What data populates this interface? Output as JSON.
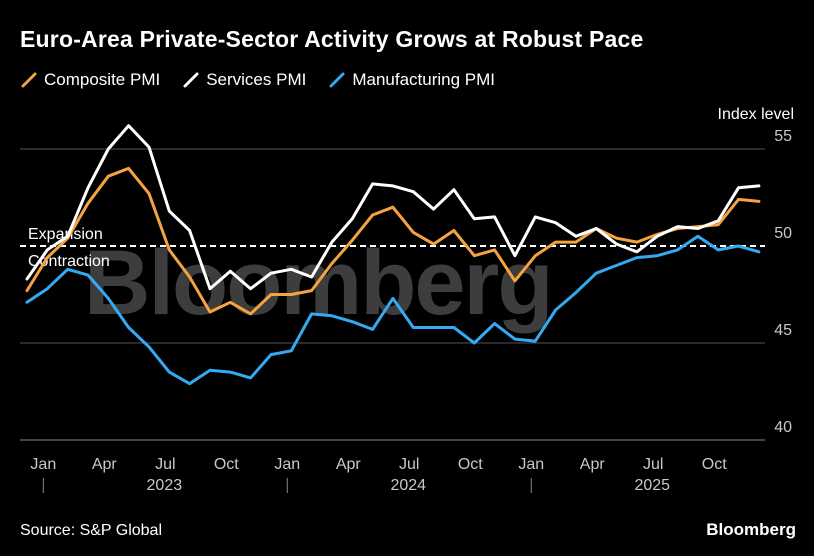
{
  "header": {
    "title": "Euro-Area Private-Sector Activity Grows at Robust Pace"
  },
  "footer": {
    "source": "Source: S&P Global",
    "brand": "Bloomberg"
  },
  "watermark": "Bloomberg",
  "colors": {
    "composite": "#f5a340",
    "services": "#ffffff",
    "manufacturing": "#34aaf2",
    "grid": "#555555",
    "axis": "#888888",
    "watermark": "#3d3d3d"
  },
  "chart_data": {
    "type": "line",
    "title": "Euro-Area Private-Sector Activity Grows at Robust Pace",
    "ylabel": "Index level",
    "xlabel": "",
    "ylim": [
      40,
      57
    ],
    "yticks": [
      40,
      45,
      50,
      55
    ],
    "grid": true,
    "legend_position": "top-left",
    "reference_line": {
      "value": 50,
      "upper_label": "Expansion",
      "lower_label": "Contraction"
    },
    "x_ticks": [
      {
        "index": 1,
        "label": "Jan"
      },
      {
        "index": 4,
        "label": "Apr"
      },
      {
        "index": 7,
        "label": "Jul"
      },
      {
        "index": 10,
        "label": "Oct"
      },
      {
        "index": 13,
        "label": "Jan"
      },
      {
        "index": 16,
        "label": "Apr"
      },
      {
        "index": 19,
        "label": "Jul"
      },
      {
        "index": 22,
        "label": "Oct"
      },
      {
        "index": 25,
        "label": "Jan"
      },
      {
        "index": 28,
        "label": "Apr"
      },
      {
        "index": 31,
        "label": "Jul"
      },
      {
        "index": 34,
        "label": "Oct"
      }
    ],
    "years": [
      {
        "index": 1,
        "label": "2023"
      },
      {
        "index": 13,
        "label": "2024"
      },
      {
        "index": 25,
        "label": "2025"
      }
    ],
    "x": [
      "2022-12",
      "2023-01",
      "2023-02",
      "2023-03",
      "2023-04",
      "2023-05",
      "2023-06",
      "2023-07",
      "2023-08",
      "2023-09",
      "2023-10",
      "2023-11",
      "2023-12",
      "2024-01",
      "2024-02",
      "2024-03",
      "2024-04",
      "2024-05",
      "2024-06",
      "2024-07",
      "2024-08",
      "2024-09",
      "2024-10",
      "2024-11",
      "2024-12",
      "2025-01",
      "2025-02",
      "2025-03",
      "2025-04",
      "2025-05",
      "2025-06",
      "2025-07",
      "2025-08",
      "2025-09",
      "2025-10",
      "2025-11",
      "2025-12"
    ],
    "series": [
      {
        "name": "Composite PMI",
        "key": "composite",
        "values": [
          47.7,
          49.4,
          50.4,
          52.2,
          53.6,
          54.0,
          52.7,
          49.8,
          48.4,
          46.6,
          47.1,
          46.5,
          47.5,
          47.5,
          47.7,
          49.1,
          50.3,
          51.6,
          52.0,
          50.7,
          50.1,
          50.8,
          49.5,
          49.8,
          48.2,
          49.5,
          50.2,
          50.2,
          50.9,
          50.4,
          50.2,
          50.6,
          50.9,
          51.0,
          51.1,
          52.4,
          52.3
        ]
      },
      {
        "name": "Services PMI",
        "key": "services",
        "values": [
          48.3,
          49.8,
          50.5,
          53.0,
          55.0,
          56.2,
          55.1,
          51.8,
          50.8,
          47.8,
          48.7,
          47.8,
          48.6,
          48.8,
          48.4,
          50.2,
          51.4,
          53.2,
          53.1,
          52.8,
          51.9,
          52.9,
          51.4,
          51.5,
          49.5,
          51.5,
          51.2,
          50.5,
          50.9,
          50.1,
          49.7,
          50.5,
          51.0,
          50.9,
          51.3,
          53.0,
          53.1
        ]
      },
      {
        "name": "Manufacturing PMI",
        "key": "manufacturing",
        "values": [
          47.1,
          47.8,
          48.8,
          48.5,
          47.3,
          45.8,
          44.8,
          43.5,
          42.9,
          43.6,
          43.5,
          43.2,
          44.4,
          44.6,
          46.5,
          46.4,
          46.1,
          45.7,
          47.3,
          45.8,
          45.8,
          45.8,
          45.0,
          46.0,
          45.2,
          45.1,
          46.7,
          47.6,
          48.6,
          49.0,
          49.4,
          49.5,
          49.8,
          50.5,
          49.8,
          50.0,
          49.7
        ]
      }
    ]
  }
}
